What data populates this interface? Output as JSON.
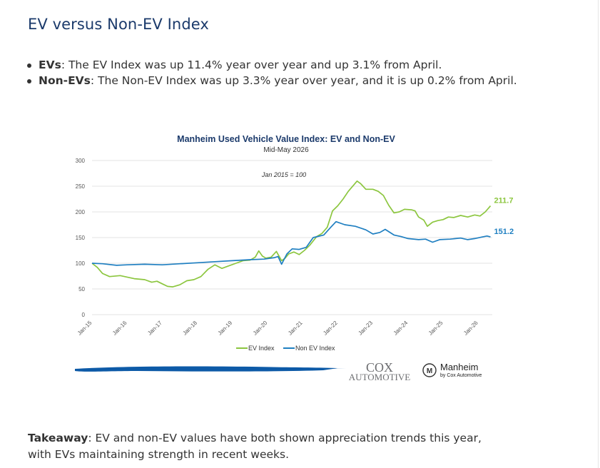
{
  "page": {
    "title": "EV versus Non-EV Index",
    "bullets": [
      {
        "label": "EVs",
        "text": ": The EV Index was up 11.4% year over year and up 3.1% from April."
      },
      {
        "label": "Non-EVs",
        "text": ": The Non-EV Index was up 3.3% year over year, and it is up 0.2% from April."
      }
    ],
    "takeaway_label": "Takeaway",
    "takeaway_text": ": EV and non-EV values have both shown appreciation trends this year, with EVs maintaining strength in recent weeks."
  },
  "chart_data": {
    "type": "line",
    "title": "Manheim Used Vehicle Value Index: EV and Non-EV",
    "subtitle": "Mid-May 2026",
    "annotation": "Jan 2015 = 100",
    "ylim": [
      0,
      300
    ],
    "yticks": [
      0,
      50,
      100,
      150,
      200,
      250,
      300
    ],
    "xlim": [
      2015,
      2026.4
    ],
    "xticks": [
      {
        "label": "Jan-15",
        "value": 2015
      },
      {
        "label": "Jan-16",
        "value": 2016
      },
      {
        "label": "Jan-17",
        "value": 2017
      },
      {
        "label": "Jan-18",
        "value": 2018
      },
      {
        "label": "Jan-19",
        "value": 2019
      },
      {
        "label": "Jan-20",
        "value": 2020
      },
      {
        "label": "Jan-21",
        "value": 2021
      },
      {
        "label": "Jan-22",
        "value": 2022
      },
      {
        "label": "Jan-23",
        "value": 2023
      },
      {
        "label": "Jan-24",
        "value": 2024
      },
      {
        "label": "Jan-25",
        "value": 2025
      },
      {
        "label": "Jan-26",
        "value": 2026
      }
    ],
    "grid": true,
    "legend_position": "bottom",
    "series": [
      {
        "name": "EV Index",
        "color": "#8cc63f",
        "end_label": "211.7",
        "points": [
          [
            2015,
            100
          ],
          [
            2015.15,
            92
          ],
          [
            2015.3,
            80
          ],
          [
            2015.5,
            74
          ],
          [
            2015.8,
            76
          ],
          [
            2016,
            73
          ],
          [
            2016.2,
            70
          ],
          [
            2016.5,
            68
          ],
          [
            2016.7,
            63
          ],
          [
            2016.85,
            65
          ],
          [
            2017,
            60
          ],
          [
            2017.15,
            55
          ],
          [
            2017.3,
            54
          ],
          [
            2017.5,
            58
          ],
          [
            2017.7,
            66
          ],
          [
            2017.9,
            68
          ],
          [
            2018.1,
            74
          ],
          [
            2018.3,
            88
          ],
          [
            2018.5,
            97
          ],
          [
            2018.7,
            90
          ],
          [
            2018.9,
            95
          ],
          [
            2019.1,
            100
          ],
          [
            2019.3,
            105
          ],
          [
            2019.5,
            106
          ],
          [
            2019.65,
            112
          ],
          [
            2019.75,
            124
          ],
          [
            2019.85,
            114
          ],
          [
            2019.95,
            110
          ],
          [
            2020.1,
            112
          ],
          [
            2020.25,
            123
          ],
          [
            2020.4,
            105
          ],
          [
            2020.5,
            110
          ],
          [
            2020.6,
            118
          ],
          [
            2020.75,
            122
          ],
          [
            2020.9,
            117
          ],
          [
            2021.05,
            125
          ],
          [
            2021.2,
            135
          ],
          [
            2021.4,
            152
          ],
          [
            2021.55,
            158
          ],
          [
            2021.7,
            170
          ],
          [
            2021.85,
            202
          ],
          [
            2022,
            212
          ],
          [
            2022.15,
            225
          ],
          [
            2022.3,
            240
          ],
          [
            2022.45,
            252
          ],
          [
            2022.55,
            260
          ],
          [
            2022.65,
            255
          ],
          [
            2022.8,
            244
          ],
          [
            2023,
            244
          ],
          [
            2023.15,
            240
          ],
          [
            2023.3,
            232
          ],
          [
            2023.45,
            213
          ],
          [
            2023.6,
            198
          ],
          [
            2023.75,
            200
          ],
          [
            2023.9,
            205
          ],
          [
            2024.1,
            204
          ],
          [
            2024.2,
            202
          ],
          [
            2024.3,
            190
          ],
          [
            2024.45,
            184
          ],
          [
            2024.55,
            172
          ],
          [
            2024.7,
            180
          ],
          [
            2024.85,
            183
          ],
          [
            2025,
            185
          ],
          [
            2025.15,
            190
          ],
          [
            2025.3,
            189
          ],
          [
            2025.5,
            193
          ],
          [
            2025.7,
            190
          ],
          [
            2025.9,
            194
          ],
          [
            2026.05,
            192
          ],
          [
            2026.2,
            200
          ],
          [
            2026.35,
            211.7
          ]
        ]
      },
      {
        "name": "Non EV Index",
        "color": "#1f7fc1",
        "end_label": "151.2",
        "points": [
          [
            2015,
            100
          ],
          [
            2015.3,
            99
          ],
          [
            2015.7,
            96
          ],
          [
            2016,
            97
          ],
          [
            2016.5,
            98
          ],
          [
            2017,
            97
          ],
          [
            2017.5,
            99
          ],
          [
            2018,
            101
          ],
          [
            2018.5,
            103
          ],
          [
            2019,
            105
          ],
          [
            2019.5,
            107
          ],
          [
            2019.9,
            108
          ],
          [
            2020.2,
            111
          ],
          [
            2020.3,
            113
          ],
          [
            2020.4,
            98
          ],
          [
            2020.55,
            118
          ],
          [
            2020.7,
            128
          ],
          [
            2020.9,
            127
          ],
          [
            2021.1,
            131
          ],
          [
            2021.3,
            150
          ],
          [
            2021.6,
            155
          ],
          [
            2021.8,
            170
          ],
          [
            2021.95,
            181
          ],
          [
            2022.2,
            175
          ],
          [
            2022.5,
            172
          ],
          [
            2022.8,
            165
          ],
          [
            2023,
            157
          ],
          [
            2023.2,
            160
          ],
          [
            2023.35,
            166
          ],
          [
            2023.6,
            155
          ],
          [
            2023.8,
            152
          ],
          [
            2024,
            148
          ],
          [
            2024.3,
            146
          ],
          [
            2024.5,
            147
          ],
          [
            2024.7,
            141
          ],
          [
            2024.9,
            146
          ],
          [
            2025.2,
            147
          ],
          [
            2025.5,
            149
          ],
          [
            2025.7,
            146
          ],
          [
            2025.9,
            148
          ],
          [
            2026.1,
            151
          ],
          [
            2026.25,
            153
          ],
          [
            2026.35,
            151.2
          ]
        ]
      }
    ],
    "legend": [
      "EV Index",
      "Non EV Index"
    ]
  },
  "logos": {
    "cox_line1": "COX",
    "cox_line2": "AUTOMOTIVE",
    "manheim_line1": "Manheim",
    "manheim_line2": "by Cox Automotive",
    "manheim_mark": "M",
    "brand_blue": "#0d5aa7",
    "cox_gray": "#6d6e71"
  }
}
